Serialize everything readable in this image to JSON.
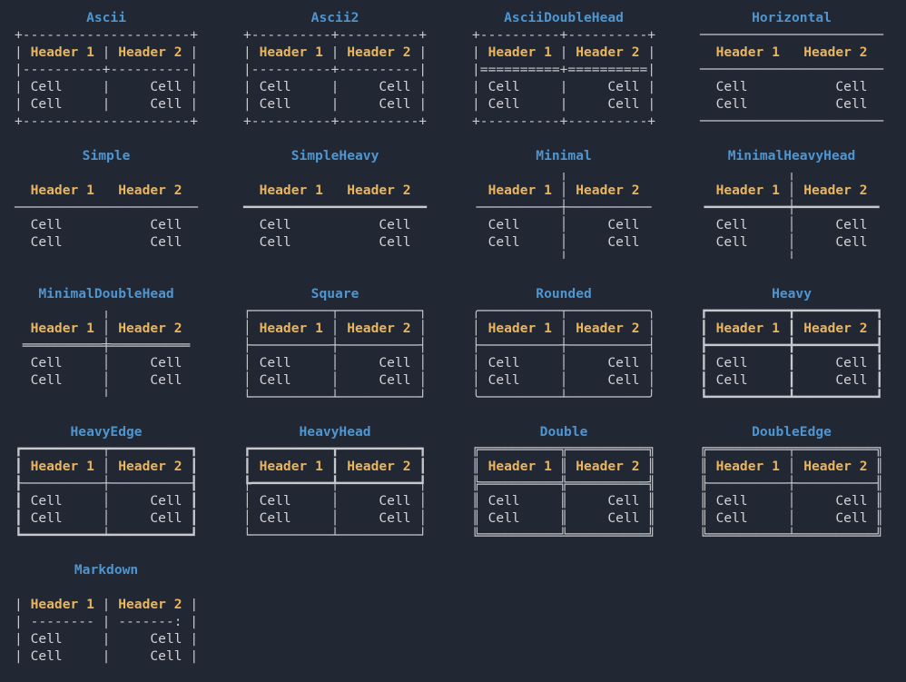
{
  "window": {
    "background": "#222734"
  },
  "palette": {
    "title": "#4f95cf",
    "header": "#e9b55f",
    "cell": "#d2d4d7",
    "border": "#c5c8cd"
  },
  "strings": {
    "header1": "Header 1",
    "header2": "Header 2",
    "cell": "Cell"
  },
  "layout": {
    "cols": [
      16,
      268,
      520,
      771
    ],
    "rows": [
      10,
      162,
      314,
      466,
      618
    ]
  },
  "tables": [
    {
      "name": "Ascii",
      "row": 0,
      "col": 0,
      "top": "+---------------------+",
      "hv": "|||",
      "div": "|----------+----------|",
      "bv": "|||",
      "bottom": "+---------------------+"
    },
    {
      "name": "Ascii2",
      "row": 0,
      "col": 1,
      "top": "+----------+----------+",
      "hv": "|||",
      "div": "|----------+----------|",
      "bv": "|||",
      "bottom": "+----------+----------+"
    },
    {
      "name": "AsciiDoubleHead",
      "row": 0,
      "col": 2,
      "top": "+----------+----------+",
      "hv": "|||",
      "div": "|==========+==========|",
      "bv": "|||",
      "bottom": "+----------+----------+"
    },
    {
      "name": "Horizontal",
      "row": 0,
      "col": 3,
      "top": "───────────────────────",
      "hv": "   ",
      "div": "───────────────────────",
      "bv": "   ",
      "bottom": "───────────────────────"
    },
    {
      "name": "Simple",
      "row": 1,
      "col": 0,
      "top": "",
      "hv": "   ",
      "div": "───────────────────────",
      "bv": "   ",
      "bottom": ""
    },
    {
      "name": "SimpleHeavy",
      "row": 1,
      "col": 1,
      "top": "",
      "hv": "   ",
      "div": "━━━━━━━━━━━━━━━━━━━━━━━",
      "bv": "   ",
      "bottom": ""
    },
    {
      "name": "Minimal",
      "row": 1,
      "col": 2,
      "top": "           ╷           ",
      "hv": " │ ",
      "div": "╶──────────┼──────────╴",
      "bv": " │ ",
      "bottom": "           ╵           "
    },
    {
      "name": "MinimalHeavyHead",
      "row": 1,
      "col": 3,
      "top": "           ╷           ",
      "hv": " │ ",
      "div": "╺━━━━━━━━━━┿━━━━━━━━━━╸",
      "bv": " │ ",
      "bottom": "           ╵           "
    },
    {
      "name": "MinimalDoubleHead",
      "row": 2,
      "col": 0,
      "top": "           ╷           ",
      "hv": " │ ",
      "div": " ══════════╪══════════ ",
      "bv": " │ ",
      "bottom": "           ╵           "
    },
    {
      "name": "Square",
      "row": 2,
      "col": 1,
      "top": "┌──────────┬──────────┐",
      "hv": "│││",
      "div": "├──────────┼──────────┤",
      "bv": "│││",
      "bottom": "└──────────┴──────────┘"
    },
    {
      "name": "Rounded",
      "row": 2,
      "col": 2,
      "top": "╭──────────┬──────────╮",
      "hv": "│││",
      "div": "├──────────┼──────────┤",
      "bv": "│││",
      "bottom": "╰──────────┴──────────╯"
    },
    {
      "name": "Heavy",
      "row": 2,
      "col": 3,
      "top": "┏━━━━━━━━━━┳━━━━━━━━━━┓",
      "hv": "┃┃┃",
      "div": "┣━━━━━━━━━━╋━━━━━━━━━━┫",
      "bv": "┃┃┃",
      "bottom": "┗━━━━━━━━━━┻━━━━━━━━━━┛"
    },
    {
      "name": "HeavyEdge",
      "row": 3,
      "col": 0,
      "top": "┏━━━━━━━━━━┯━━━━━━━━━━┓",
      "hv": "┃│┃",
      "div": "┠──────────┼──────────┨",
      "bv": "┃│┃",
      "bottom": "┗━━━━━━━━━━┷━━━━━━━━━━┛"
    },
    {
      "name": "HeavyHead",
      "row": 3,
      "col": 1,
      "top": "┏━━━━━━━━━━┳━━━━━━━━━━┓",
      "hv": "┃┃┃",
      "div": "┡━━━━━━━━━━╇━━━━━━━━━━┩",
      "bv": "│││",
      "bottom": "└──────────┴──────────┘"
    },
    {
      "name": "Double",
      "row": 3,
      "col": 2,
      "top": "╔══════════╦══════════╗",
      "hv": "║║║",
      "div": "╠══════════╬══════════╣",
      "bv": "║║║",
      "bottom": "╚══════════╩══════════╝"
    },
    {
      "name": "DoubleEdge",
      "row": 3,
      "col": 3,
      "top": "╔══════════╤══════════╗",
      "hv": "║│║",
      "div": "╟──────────┼──────────╢",
      "bv": "║│║",
      "bottom": "╚══════════╧══════════╝"
    },
    {
      "name": "Markdown",
      "row": 4,
      "col": 0,
      "top": "",
      "hv": "|||",
      "div": "| -------- | -------: |",
      "bv": "|||",
      "bottom": ""
    }
  ]
}
